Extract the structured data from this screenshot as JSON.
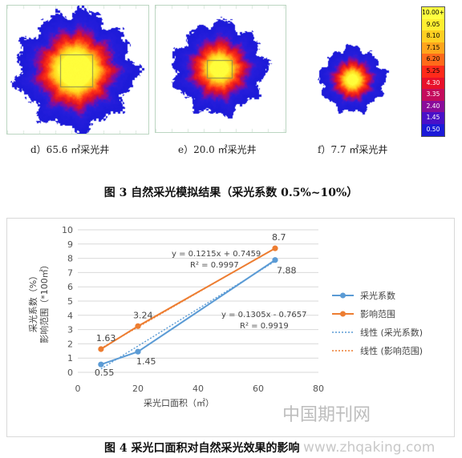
{
  "figure3": {
    "panels": [
      {
        "label": "d）65.6 ㎡采光井"
      },
      {
        "label": "e）20.0 ㎡采光井"
      },
      {
        "label": "f）7.7 ㎡采光井"
      }
    ],
    "colorbar": {
      "labels": [
        "10.00+",
        "9.05",
        "8.10",
        "7.15",
        "6.20",
        "5.25",
        "4.30",
        "3.35",
        "2.40",
        "1.45",
        "0.50"
      ],
      "colors": [
        "#ffff40",
        "#ffee30",
        "#ffcf22",
        "#ffa51c",
        "#ff6a1a",
        "#ff2a1a",
        "#e8102a",
        "#c40c5c",
        "#8a0c9a",
        "#4a10c8",
        "#1c1ad8"
      ]
    },
    "caption": "图 3  自然采光模拟结果（采光系数 0.5%~10%）"
  },
  "figure4": {
    "caption": "图 4  采光口面积对自然采光效果的影响",
    "chart_data": {
      "type": "line",
      "xlabel": "采光口面积（㎡）",
      "ylabel": "采光系数（%）\n影响范围（*100㎡）",
      "xlim": [
        0,
        80
      ],
      "ylim": [
        0,
        10
      ],
      "xticks": [
        0,
        20,
        40,
        60,
        80
      ],
      "yticks": [
        0,
        1,
        2,
        3,
        4,
        5,
        6,
        7,
        8,
        9,
        10
      ],
      "grid": true,
      "legend_position": "right",
      "series": [
        {
          "name": "采光系数",
          "color": "#5b9bd5",
          "x": [
            7.7,
            20.0,
            65.6
          ],
          "y": [
            0.55,
            1.45,
            7.88
          ],
          "labels": [
            "0.55",
            "1.45",
            "7.88"
          ]
        },
        {
          "name": "影响范围",
          "color": "#ed7d31",
          "x": [
            7.7,
            20.0,
            65.6
          ],
          "y": [
            1.63,
            3.24,
            8.7
          ],
          "labels": [
            "1.63",
            "3.24",
            "8.7"
          ]
        }
      ],
      "trendlines": [
        {
          "name": "线性 (采光系数)",
          "color": "#5b9bd5",
          "slope": 0.1305,
          "intercept": -0.7657,
          "equation": "y = 0.1305x - 0.7657",
          "r2": "R² = 0.9919"
        },
        {
          "name": "线性 (影响范围)",
          "color": "#ed7d31",
          "slope": 0.1215,
          "intercept": 0.7459,
          "equation": "y = 0.1215x + 0.7459",
          "r2": "R² = 0.9997"
        }
      ]
    }
  },
  "watermark": {
    "chinese": "中国期刊网",
    "url": "www.zhqaking.com"
  }
}
